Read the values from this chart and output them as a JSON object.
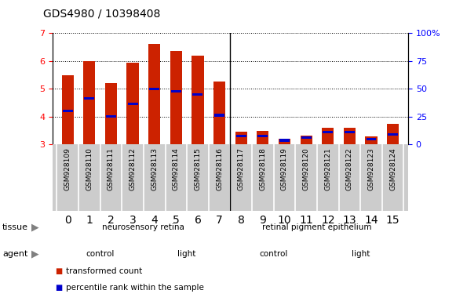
{
  "title": "GDS4980 / 10398408",
  "samples": [
    "GSM928109",
    "GSM928110",
    "GSM928111",
    "GSM928112",
    "GSM928113",
    "GSM928114",
    "GSM928115",
    "GSM928116",
    "GSM928117",
    "GSM928118",
    "GSM928119",
    "GSM928120",
    "GSM928121",
    "GSM928122",
    "GSM928123",
    "GSM928124"
  ],
  "red_values": [
    5.5,
    6.0,
    5.2,
    5.95,
    6.6,
    6.35,
    6.2,
    5.25,
    3.45,
    3.48,
    3.2,
    3.32,
    3.6,
    3.6,
    3.28,
    3.75
  ],
  "blue_values": [
    4.2,
    4.65,
    4.0,
    4.45,
    5.0,
    4.9,
    4.8,
    4.05,
    3.3,
    3.3,
    3.15,
    3.25,
    3.45,
    3.45,
    3.2,
    3.35
  ],
  "ylim_left": [
    3,
    7
  ],
  "ylim_right": [
    0,
    100
  ],
  "yticks_left": [
    3,
    4,
    5,
    6,
    7
  ],
  "yticks_right": [
    0,
    25,
    50,
    75,
    100
  ],
  "ytick_labels_right": [
    "0",
    "25",
    "50",
    "75",
    "100%"
  ],
  "bar_color": "#cc2200",
  "blue_color": "#0000cc",
  "tissue_groups": [
    {
      "label": "neurosensory retina",
      "start": 0,
      "end": 8,
      "color": "#99ee99"
    },
    {
      "label": "retinal pigment epithelium",
      "start": 8,
      "end": 16,
      "color": "#44dd44"
    }
  ],
  "agent_groups": [
    {
      "label": "control",
      "start": 0,
      "end": 4,
      "color": "#ee99ee"
    },
    {
      "label": "light",
      "start": 4,
      "end": 8,
      "color": "#dd44dd"
    },
    {
      "label": "control",
      "start": 8,
      "end": 12,
      "color": "#ee99ee"
    },
    {
      "label": "light",
      "start": 12,
      "end": 16,
      "color": "#dd44dd"
    }
  ],
  "legend_items": [
    {
      "label": "transformed count",
      "color": "#cc2200"
    },
    {
      "label": "percentile rank within the sample",
      "color": "#0000cc"
    }
  ],
  "xlabel_tissue": "tissue",
  "xlabel_agent": "agent",
  "bar_width": 0.55,
  "group_separator": 7.5,
  "n_samples": 16,
  "xtick_bg": "#cccccc"
}
